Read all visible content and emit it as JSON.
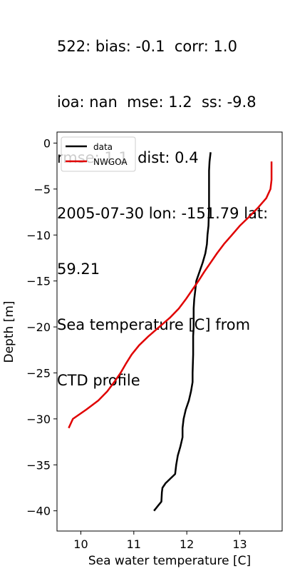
{
  "title_lines": [
    "522: bias: -0.1  corr: 1.0",
    "ioa: nan  mse: 1.2  ss: -9.8",
    "rmse: 1.1  dist: 0.4",
    "2005-07-30 lon: -151.79 lat:",
    "59.21",
    "Sea temperature [C] from",
    "CTD profile"
  ],
  "chart_data": {
    "type": "line",
    "xlabel": "Sea water temperature [C]",
    "ylabel": "Depth [m]",
    "xlim": [
      9.55,
      13.8
    ],
    "ylim": [
      -42.2,
      1.2
    ],
    "xticks": [
      10,
      11,
      12,
      13
    ],
    "yticks": [
      0,
      -5,
      -10,
      -15,
      -20,
      -25,
      -30,
      -35,
      -40
    ],
    "ytick_labels": [
      "0",
      "−5",
      "−10",
      "−15",
      "−20",
      "−25",
      "−30",
      "−35",
      "−40"
    ],
    "grid": false,
    "legend_position": "top-left",
    "series": [
      {
        "name": "data",
        "color": "#000000",
        "points": [
          [
            12.45,
            -1
          ],
          [
            12.43,
            -2
          ],
          [
            12.42,
            -3
          ],
          [
            12.42,
            -5
          ],
          [
            12.42,
            -7
          ],
          [
            12.41,
            -9
          ],
          [
            12.39,
            -10
          ],
          [
            12.38,
            -11
          ],
          [
            12.35,
            -12
          ],
          [
            12.3,
            -13
          ],
          [
            12.24,
            -14
          ],
          [
            12.18,
            -15
          ],
          [
            12.16,
            -16
          ],
          [
            12.14,
            -17
          ],
          [
            12.13,
            -18
          ],
          [
            12.13,
            -19
          ],
          [
            12.13,
            -20
          ],
          [
            12.12,
            -21
          ],
          [
            12.12,
            -23
          ],
          [
            12.11,
            -25
          ],
          [
            12.11,
            -26
          ],
          [
            12.08,
            -27
          ],
          [
            12.04,
            -28
          ],
          [
            11.98,
            -29
          ],
          [
            11.94,
            -30
          ],
          [
            11.92,
            -31
          ],
          [
            11.92,
            -32
          ],
          [
            11.88,
            -33
          ],
          [
            11.83,
            -34
          ],
          [
            11.8,
            -35
          ],
          [
            11.78,
            -36
          ],
          [
            11.6,
            -37
          ],
          [
            11.54,
            -37.5
          ],
          [
            11.53,
            -38
          ],
          [
            11.52,
            -39
          ],
          [
            11.45,
            -39.5
          ],
          [
            11.38,
            -40
          ]
        ]
      },
      {
        "name": "NWGOA",
        "color": "#e00000",
        "points": [
          [
            13.6,
            -2
          ],
          [
            13.6,
            -3
          ],
          [
            13.6,
            -4
          ],
          [
            13.58,
            -5
          ],
          [
            13.5,
            -6
          ],
          [
            13.35,
            -7
          ],
          [
            13.18,
            -8
          ],
          [
            13.0,
            -9
          ],
          [
            12.85,
            -10
          ],
          [
            12.7,
            -11
          ],
          [
            12.57,
            -12
          ],
          [
            12.45,
            -13
          ],
          [
            12.33,
            -14
          ],
          [
            12.22,
            -15
          ],
          [
            12.1,
            -16
          ],
          [
            11.98,
            -17
          ],
          [
            11.85,
            -18
          ],
          [
            11.68,
            -19
          ],
          [
            11.48,
            -20
          ],
          [
            11.28,
            -21
          ],
          [
            11.1,
            -22
          ],
          [
            10.96,
            -23
          ],
          [
            10.85,
            -24
          ],
          [
            10.75,
            -25
          ],
          [
            10.63,
            -26
          ],
          [
            10.5,
            -27
          ],
          [
            10.33,
            -28
          ],
          [
            10.1,
            -29
          ],
          [
            9.85,
            -30
          ],
          [
            9.77,
            -31
          ]
        ]
      }
    ]
  }
}
